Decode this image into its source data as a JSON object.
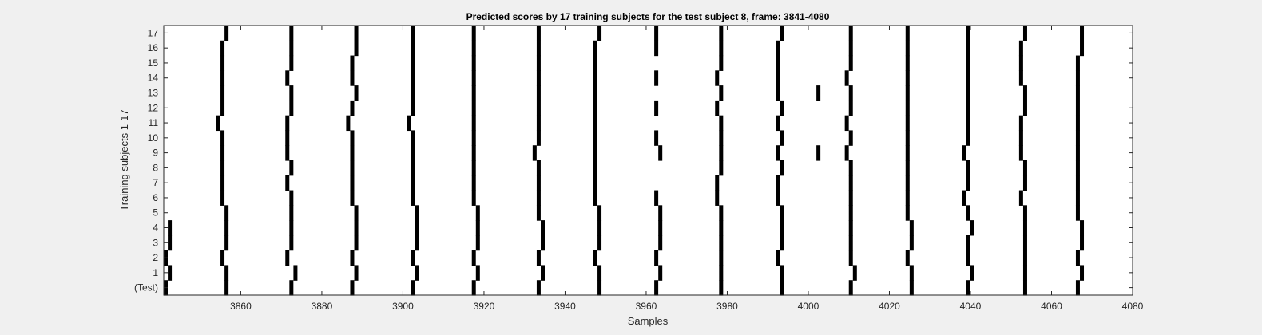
{
  "chart_data": {
    "type": "heatmap",
    "title": "Predicted scores by 17 training subjects for the test subject 8, frame: 3841-4080",
    "xlabel": "Samples",
    "ylabel": "Training subjects 1-17",
    "xlim": [
      3841,
      4080
    ],
    "x_ticks": [
      3860,
      3880,
      3900,
      3920,
      3940,
      3960,
      3980,
      4000,
      4020,
      4040,
      4060,
      4080
    ],
    "rows": [
      "(Test)",
      "1",
      "2",
      "3",
      "4",
      "5",
      "6",
      "7",
      "8",
      "9",
      "10",
      "11",
      "12",
      "13",
      "14",
      "15",
      "16",
      "17"
    ],
    "colors": {
      "background": "#f0f0f0",
      "plot": "#ffffff",
      "mark": "#000000",
      "axis": "#262626"
    },
    "marks": [
      {
        "row": "(Test)",
        "samples": [
          3841,
          3856,
          3872,
          3887,
          3902,
          3917,
          3933,
          3948,
          3962,
          3978,
          3993,
          4010,
          4025,
          4039,
          4053,
          4066
        ]
      },
      {
        "row": "1",
        "samples": [
          3842,
          3856,
          3873,
          3888,
          3903,
          3918,
          3934,
          3948,
          3963,
          3978,
          3993,
          4011,
          4025,
          4040,
          4053,
          4067
        ]
      },
      {
        "row": "2",
        "samples": [
          3841,
          3855,
          3871,
          3887,
          3902,
          3917,
          3933,
          3947,
          3962,
          3978,
          3992,
          4010,
          4024,
          4039,
          4053,
          4066
        ]
      },
      {
        "row": "3",
        "samples": [
          3842,
          3856,
          3872,
          3888,
          3903,
          3918,
          3934,
          3948,
          3963,
          3978,
          3993,
          4010,
          4025,
          4039,
          4053,
          4067
        ]
      },
      {
        "row": "4",
        "samples": [
          3842,
          3856,
          3872,
          3888,
          3903,
          3918,
          3934,
          3948,
          3963,
          3978,
          3993,
          4010,
          4025,
          4040,
          4053,
          4067
        ]
      },
      {
        "row": "5",
        "samples": [
          3856,
          3872,
          3888,
          3903,
          3918,
          3933,
          3948,
          3963,
          3978,
          3993,
          4010,
          4024,
          4039,
          4053,
          4066
        ]
      },
      {
        "row": "6",
        "samples": [
          3855,
          3872,
          3887,
          3902,
          3917,
          3933,
          3947,
          3962,
          3977,
          3992,
          4010,
          4024,
          4038,
          4052,
          4066
        ]
      },
      {
        "row": "7",
        "samples": [
          3855,
          3871,
          3887,
          3902,
          3917,
          3933,
          3947,
          3977,
          3992,
          4010,
          4024,
          4039,
          4053,
          4066
        ]
      },
      {
        "row": "8",
        "samples": [
          3855,
          3872,
          3887,
          3902,
          3917,
          3933,
          3947,
          3978,
          3993,
          4010,
          4024,
          4039,
          4053,
          4066
        ]
      },
      {
        "row": "9",
        "samples": [
          3855,
          3871,
          3887,
          3902,
          3917,
          3932,
          3947,
          3963,
          3978,
          3992,
          4002,
          4009,
          4024,
          4038,
          4052,
          4066
        ]
      },
      {
        "row": "10",
        "samples": [
          3855,
          3871,
          3887,
          3902,
          3917,
          3933,
          3947,
          3962,
          3978,
          3993,
          4010,
          4024,
          4039,
          4052,
          4066
        ]
      },
      {
        "row": "11",
        "samples": [
          3854,
          3871,
          3886,
          3901,
          3917,
          3933,
          3947,
          3978,
          3992,
          4009,
          4024,
          4039,
          4052,
          4066
        ]
      },
      {
        "row": "12",
        "samples": [
          3855,
          3872,
          3887,
          3902,
          3917,
          3933,
          3947,
          3962,
          3977,
          3993,
          4010,
          4024,
          4039,
          4053,
          4066
        ]
      },
      {
        "row": "13",
        "samples": [
          3855,
          3872,
          3888,
          3902,
          3917,
          3933,
          3947,
          3978,
          3992,
          4002,
          4010,
          4024,
          4039,
          4053,
          4066
        ]
      },
      {
        "row": "14",
        "samples": [
          3855,
          3871,
          3887,
          3902,
          3917,
          3933,
          3947,
          3962,
          3977,
          3992,
          4009,
          4024,
          4039,
          4052,
          4066
        ]
      },
      {
        "row": "15",
        "samples": [
          3855,
          3872,
          3887,
          3902,
          3917,
          3933,
          3947,
          3978,
          3992,
          4010,
          4024,
          4039,
          4052,
          4066
        ]
      },
      {
        "row": "16",
        "samples": [
          3855,
          3872,
          3888,
          3902,
          3917,
          3933,
          3947,
          3962,
          3978,
          3992,
          4010,
          4024,
          4039,
          4052,
          4067
        ]
      },
      {
        "row": "17",
        "samples": [
          3856,
          3872,
          3888,
          3902,
          3917,
          3933,
          3948,
          3962,
          3978,
          3993,
          4010,
          4024,
          4039,
          4053,
          4067
        ]
      }
    ]
  }
}
